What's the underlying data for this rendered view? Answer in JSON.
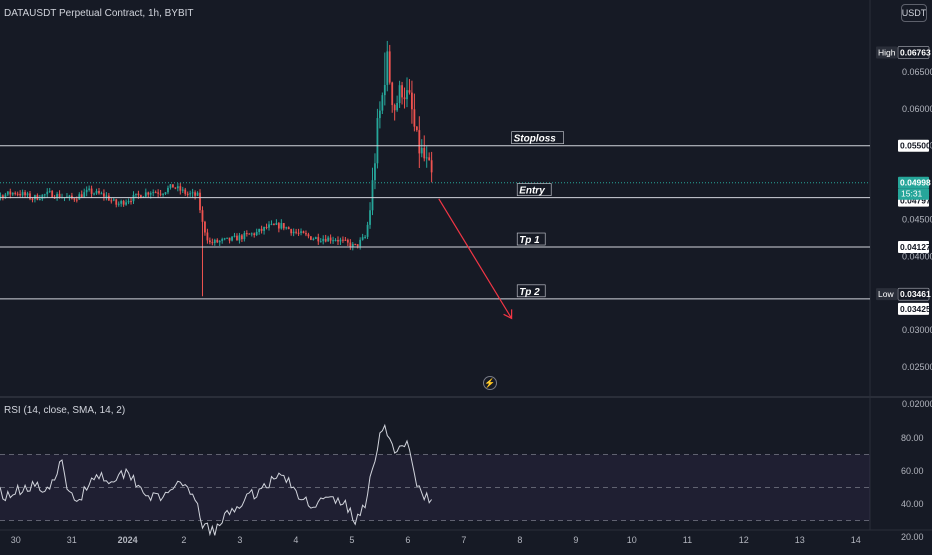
{
  "header": {
    "symbol_title": "DATAUSDT Perpetual Contract, 1h, BYBIT",
    "currency": "USDT"
  },
  "rsi": {
    "title": "RSI (14, close, SMA, 14, 2)"
  },
  "colors": {
    "background": "#161a25",
    "up": "#26a69a",
    "down": "#ef5350",
    "level_line": "#d1d4dc",
    "arrow": "#f23645",
    "rsi_line": "#d1d4dc",
    "rsi_band": "#7e57c2"
  },
  "icons": [
    "flash-icon"
  ],
  "chart_data": [
    {
      "type": "candlestick",
      "title": "DATAUSDT Perpetual Contract, 1h, BYBIT",
      "x_ticks": [
        "30",
        "31",
        "2024",
        "2",
        "3",
        "4",
        "5",
        "6",
        "7",
        "8",
        "9",
        "10",
        "11",
        "12",
        "13",
        "14"
      ],
      "y_ticks": [
        "0.06500",
        "0.06000",
        "0.05500",
        "0.04500",
        "0.04000",
        "0.03000",
        "0.02500",
        "0.02000"
      ],
      "ylim": [
        0.0178,
        0.0695
      ],
      "grid": false,
      "price_labels": [
        {
          "label": "High",
          "value": "0.06763"
        },
        {
          "label": "",
          "value": "0.05500"
        },
        {
          "label": "",
          "value": "0.04998"
        },
        {
          "label": "",
          "value": "15:31"
        },
        {
          "label": "",
          "value": "0.04797"
        },
        {
          "label": "",
          "value": "0.04127"
        },
        {
          "label": "Low",
          "value": "0.03461"
        },
        {
          "label": "",
          "value": "0.03425"
        }
      ],
      "levels": [
        {
          "name": "Stoploss",
          "value": 0.055
        },
        {
          "name": "Entry",
          "value": 0.04797
        },
        {
          "name": "Tp 1",
          "value": 0.04127
        },
        {
          "name": "Tp 2",
          "value": 0.03425
        }
      ],
      "current_price": 0.04998,
      "projection": [
        {
          "x": 7.55,
          "y": 0.0478
        },
        {
          "x": 8.85,
          "y": 0.0316
        }
      ],
      "anchors": [
        {
          "x": -0.85,
          "y": 0.0485
        },
        {
          "x": -0.65,
          "y": 0.05
        },
        {
          "x": -0.4,
          "y": 0.048
        },
        {
          "x": 0.0,
          "y": 0.0487
        },
        {
          "x": 0.3,
          "y": 0.0479
        },
        {
          "x": 0.6,
          "y": 0.0485
        },
        {
          "x": 1.0,
          "y": 0.0478
        },
        {
          "x": 1.3,
          "y": 0.0488
        },
        {
          "x": 1.6,
          "y": 0.0482
        },
        {
          "x": 1.8,
          "y": 0.047
        },
        {
          "x": 2.0,
          "y": 0.0477
        },
        {
          "x": 2.4,
          "y": 0.0488
        },
        {
          "x": 2.6,
          "y": 0.0487
        },
        {
          "x": 2.8,
          "y": 0.0495
        },
        {
          "x": 3.05,
          "y": 0.0485
        },
        {
          "x": 3.25,
          "y": 0.0482
        },
        {
          "x": 3.32,
          "y": 0.0447
        },
        {
          "x": 3.45,
          "y": 0.0418
        },
        {
          "x": 3.8,
          "y": 0.0422
        },
        {
          "x": 4.3,
          "y": 0.0432
        },
        {
          "x": 4.5,
          "y": 0.044
        },
        {
          "x": 4.75,
          "y": 0.0442
        },
        {
          "x": 5.0,
          "y": 0.0432
        },
        {
          "x": 5.3,
          "y": 0.0425
        },
        {
          "x": 5.7,
          "y": 0.0424
        },
        {
          "x": 6.05,
          "y": 0.0413
        },
        {
          "x": 6.25,
          "y": 0.0427
        },
        {
          "x": 6.35,
          "y": 0.0482
        },
        {
          "x": 6.45,
          "y": 0.057
        },
        {
          "x": 6.55,
          "y": 0.062
        },
        {
          "x": 6.62,
          "y": 0.067
        },
        {
          "x": 6.75,
          "y": 0.06
        },
        {
          "x": 6.9,
          "y": 0.063
        },
        {
          "x": 7.05,
          "y": 0.0605
        },
        {
          "x": 7.15,
          "y": 0.0555
        },
        {
          "x": 7.3,
          "y": 0.053
        },
        {
          "x": 7.45,
          "y": 0.05
        }
      ],
      "spikes": [
        {
          "x": 3.33,
          "low": 0.0346
        },
        {
          "x": 6.6,
          "high": 0.06763
        }
      ]
    },
    {
      "type": "line",
      "title": "RSI (14, close, SMA, 14, 2)",
      "y_ticks": [
        "80.00",
        "60.00",
        "40.00",
        "20.00"
      ],
      "ylim": [
        15,
        92
      ],
      "bands": [
        30,
        50,
        70
      ],
      "anchors": [
        {
          "x": -0.85,
          "y": 48
        },
        {
          "x": -0.5,
          "y": 58
        },
        {
          "x": -0.2,
          "y": 45
        },
        {
          "x": 0.3,
          "y": 52
        },
        {
          "x": 0.6,
          "y": 46
        },
        {
          "x": 0.8,
          "y": 69
        },
        {
          "x": 0.9,
          "y": 48
        },
        {
          "x": 1.1,
          "y": 42
        },
        {
          "x": 1.4,
          "y": 58
        },
        {
          "x": 1.7,
          "y": 55
        },
        {
          "x": 2.0,
          "y": 60
        },
        {
          "x": 2.3,
          "y": 47
        },
        {
          "x": 2.6,
          "y": 42
        },
        {
          "x": 2.8,
          "y": 52
        },
        {
          "x": 3.1,
          "y": 47
        },
        {
          "x": 3.25,
          "y": 38
        },
        {
          "x": 3.35,
          "y": 26
        },
        {
          "x": 3.55,
          "y": 23
        },
        {
          "x": 3.8,
          "y": 35
        },
        {
          "x": 4.2,
          "y": 45
        },
        {
          "x": 4.6,
          "y": 55
        },
        {
          "x": 4.8,
          "y": 58
        },
        {
          "x": 5.0,
          "y": 45
        },
        {
          "x": 5.3,
          "y": 40
        },
        {
          "x": 5.6,
          "y": 43
        },
        {
          "x": 5.9,
          "y": 40
        },
        {
          "x": 6.05,
          "y": 28
        },
        {
          "x": 6.25,
          "y": 42
        },
        {
          "x": 6.45,
          "y": 75
        },
        {
          "x": 6.55,
          "y": 89
        },
        {
          "x": 6.7,
          "y": 75
        },
        {
          "x": 6.85,
          "y": 72
        },
        {
          "x": 7.0,
          "y": 76
        },
        {
          "x": 7.15,
          "y": 52
        },
        {
          "x": 7.3,
          "y": 45
        },
        {
          "x": 7.45,
          "y": 40
        }
      ]
    }
  ]
}
